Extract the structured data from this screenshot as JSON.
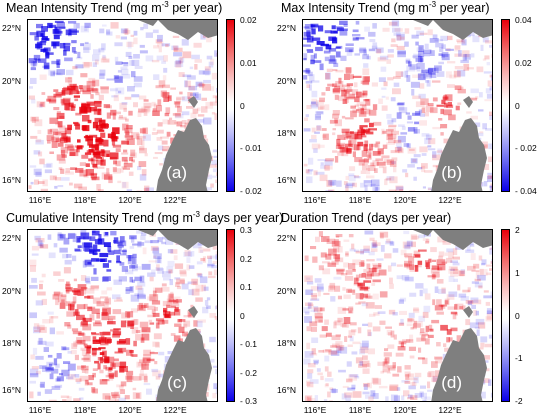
{
  "panels": [
    {
      "title_main": "Mean Intensity Trend (mg m",
      "title_sup": "-3",
      "title_rest": " per year)",
      "label": "(a)",
      "colorbar_ticks": [
        "0.02",
        "0.01",
        "0",
        "- 0.01",
        "- 0.02"
      ]
    },
    {
      "title_main": "Max Intensity Trend (mg m",
      "title_sup": "-3",
      "title_rest": " per year)",
      "label": "(b)",
      "colorbar_ticks": [
        "0.04",
        "0.02",
        "0",
        "- 0.02",
        "- 0.04"
      ]
    },
    {
      "title_main": "Cumulative Intensity Trend (mg m",
      "title_sup": "-3",
      "title_rest": " days per year)",
      "label": "(c)",
      "colorbar_ticks": [
        "0.3",
        "0.2",
        "0.1",
        "0",
        "- 0.1",
        "- 0.2",
        "- 0.3"
      ]
    },
    {
      "title_main": "Duration Trend (days per year)",
      "title_sup": "",
      "title_rest": "",
      "label": "(d)",
      "colorbar_ticks": [
        "2",
        "1",
        "0",
        "-1",
        "-2"
      ]
    }
  ],
  "lat_labels": [
    "22°N",
    "20°N",
    "18°N",
    "16°N"
  ],
  "lon_labels": [
    "116°E",
    "118°E",
    "120°E",
    "122°E"
  ],
  "colors": {
    "positive": "#e8000b",
    "negative": "#0b00e8",
    "land": "#7f7f7f",
    "ocean": "#ffffff"
  }
}
